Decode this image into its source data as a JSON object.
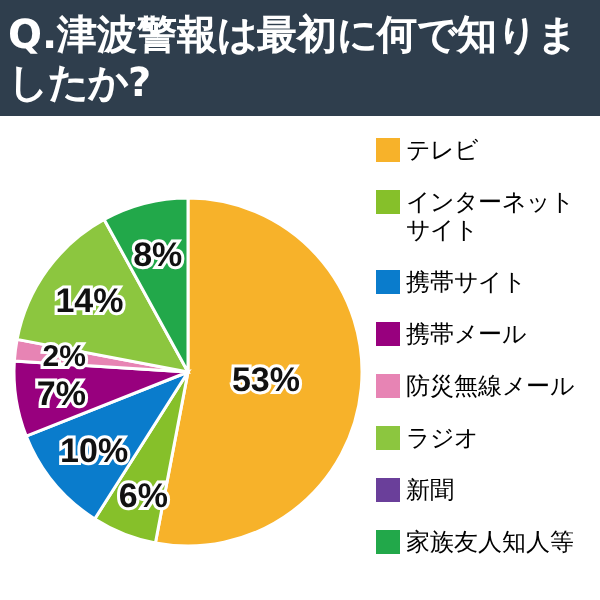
{
  "chart_data": {
    "type": "pie",
    "title": "Q.津波警報は最初に何で知りましたか?",
    "categories": [
      "テレビ",
      "インターネットサイト",
      "携帯サイト",
      "携帯メール",
      "防災無線メール",
      "ラジオ",
      "新聞",
      "家族友人知人等"
    ],
    "values": [
      53,
      6,
      10,
      7,
      2,
      14,
      0,
      8
    ],
    "colors": [
      "#f7b22a",
      "#86c02a",
      "#0a7ccc",
      "#98007e",
      "#e784b4",
      "#8cc63f",
      "#6a3f9a",
      "#22a84a"
    ],
    "value_labels": [
      "53%",
      "6%",
      "10%",
      "7%",
      "2%",
      "14%",
      null,
      "8%"
    ],
    "legend": "right"
  }
}
